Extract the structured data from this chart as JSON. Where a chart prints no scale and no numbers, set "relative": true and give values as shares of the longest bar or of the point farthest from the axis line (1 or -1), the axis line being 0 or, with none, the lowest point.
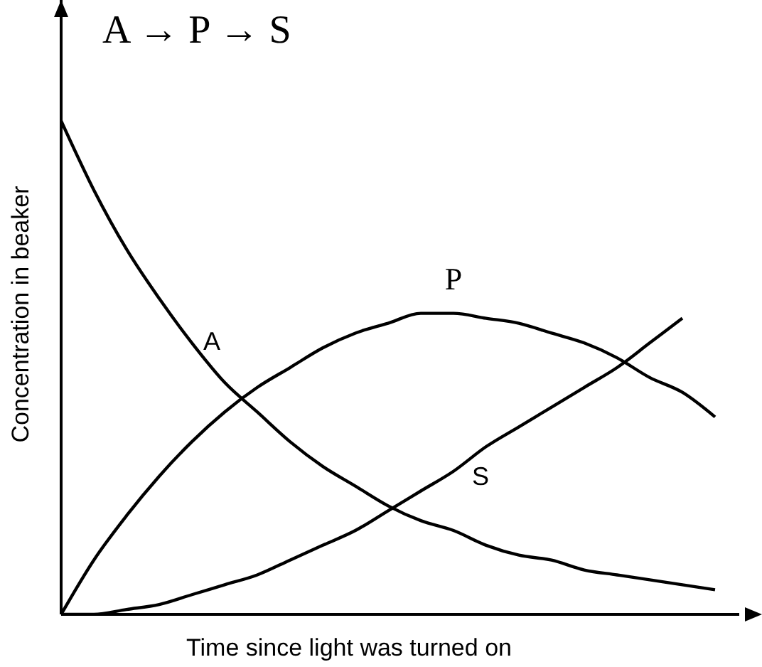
{
  "chart_data": {
    "type": "line",
    "title": "A → P → S",
    "xlabel": "Time since light was turned on",
    "ylabel": "Concentration in beaker",
    "relative": true,
    "legend": false,
    "grid": false,
    "marker": "none",
    "line_style": "solid",
    "categories": [
      null,
      null,
      null,
      null,
      null,
      null,
      null,
      null,
      null,
      null,
      null,
      null,
      null,
      null,
      null,
      null,
      null,
      null,
      null,
      null,
      null
    ],
    "series": [
      {
        "name": "A",
        "color": "#000000",
        "values": [
          1,
          0.86,
          0.74,
          0.64,
          0.55,
          0.47,
          0.41,
          0.35,
          0.3,
          0.26,
          0.22,
          0.19,
          0.17,
          0.14,
          0.12,
          0.11,
          0.09,
          0.08,
          0.07,
          0.06,
          0.05
        ]
      },
      {
        "name": "P",
        "color": "#000000",
        "values": [
          0,
          0.11,
          0.2,
          0.28,
          0.35,
          0.41,
          0.46,
          0.5,
          0.54,
          0.57,
          0.59,
          0.61,
          0.61,
          0.6,
          0.59,
          0.57,
          0.55,
          0.52,
          0.48,
          0.45,
          0.4
        ]
      },
      {
        "name": "S",
        "color": "#000000",
        "values": [
          0,
          0,
          0.01,
          0.02,
          0.04,
          0.06,
          0.08,
          0.11,
          0.14,
          0.17,
          0.21,
          0.25,
          0.29,
          0.34,
          0.38,
          0.42,
          0.46,
          0.5,
          0.55,
          0.6,
          null
        ]
      }
    ]
  }
}
